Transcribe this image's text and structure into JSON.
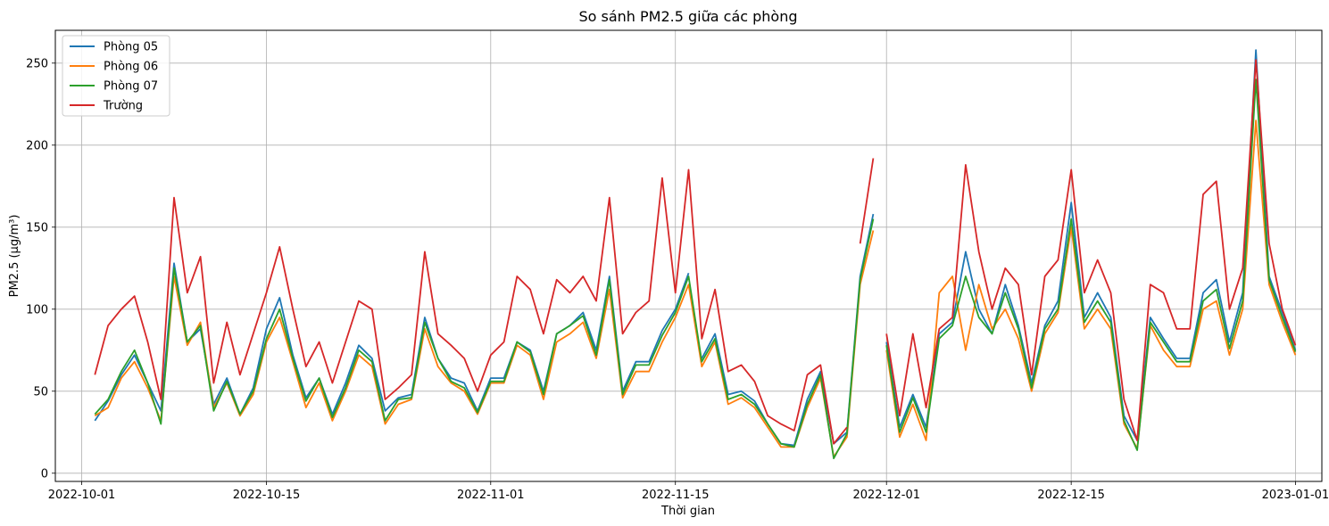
{
  "chart_data": {
    "type": "line",
    "title": "So sánh PM2.5 giữa các phòng",
    "xlabel": "Thời gian",
    "ylabel": "PM2.5 (µg/m³)",
    "xlim": [
      "2022-09-29",
      "2023-01-03"
    ],
    "ylim": [
      -5,
      270
    ],
    "x_ticks": [
      "2022-10-01",
      "2022-10-15",
      "2022-11-01",
      "2022-11-15",
      "2022-12-01",
      "2022-12-15",
      "2023-01-01"
    ],
    "y_ticks": [
      0,
      50,
      100,
      150,
      200,
      250
    ],
    "grid": true,
    "legend_position": "top-left",
    "series": [
      {
        "name": "Phòng 05",
        "color": "#1f77b4",
        "x": [
          "2022-10-02",
          "2022-10-03",
          "2022-10-04",
          "2022-10-05",
          "2022-10-06",
          "2022-10-07",
          "2022-10-08",
          "2022-10-09",
          "2022-10-10",
          "2022-10-11",
          "2022-10-12",
          "2022-10-13",
          "2022-10-14",
          "2022-10-15",
          "2022-10-16",
          "2022-10-17",
          "2022-10-18",
          "2022-10-19",
          "2022-10-20",
          "2022-10-21",
          "2022-10-22",
          "2022-10-23",
          "2022-10-24",
          "2022-10-25",
          "2022-10-26",
          "2022-10-27",
          "2022-10-28",
          "2022-10-29",
          "2022-10-30",
          "2022-10-31",
          "2022-11-01",
          "2022-11-02",
          "2022-11-03",
          "2022-11-04",
          "2022-11-05",
          "2022-11-06",
          "2022-11-07",
          "2022-11-08",
          "2022-11-09",
          "2022-11-10",
          "2022-11-11",
          "2022-11-12",
          "2022-11-13",
          "2022-11-14",
          "2022-11-15",
          "2022-11-16",
          "2022-11-17",
          "2022-11-18",
          "2022-11-19",
          "2022-11-20",
          "2022-11-21",
          "2022-11-22",
          "2022-11-23",
          "2022-11-24",
          "2022-11-25",
          "2022-11-26",
          "2022-11-27",
          "2022-11-28",
          "2022-11-29",
          "2022-11-30",
          "2022-12-01",
          "2022-12-02",
          "2022-12-03",
          "2022-12-04",
          "2022-12-05",
          "2022-12-06",
          "2022-12-07",
          "2022-12-08",
          "2022-12-09",
          "2022-12-10",
          "2022-12-11",
          "2022-12-12",
          "2022-12-13",
          "2022-12-14",
          "2022-12-15",
          "2022-12-16",
          "2022-12-17",
          "2022-12-18",
          "2022-12-19",
          "2022-12-20",
          "2022-12-21",
          "2022-12-22",
          "2022-12-23",
          "2022-12-24",
          "2022-12-25",
          "2022-12-26",
          "2022-12-27",
          "2022-12-28",
          "2022-12-29",
          "2022-12-30",
          "2022-12-31",
          "2023-01-01"
        ],
        "values": [
          32,
          44,
          60,
          72,
          55,
          38,
          128,
          80,
          88,
          42,
          58,
          36,
          52,
          88,
          107,
          72,
          46,
          58,
          36,
          55,
          78,
          70,
          38,
          46,
          48,
          95,
          70,
          58,
          55,
          38,
          58,
          58,
          80,
          75,
          50,
          85,
          90,
          98,
          75,
          120,
          50,
          68,
          68,
          87,
          100,
          122,
          70,
          85,
          48,
          50,
          44,
          30,
          18,
          17,
          45,
          62,
          18,
          25,
          120,
          158,
          80,
          28,
          48,
          28,
          85,
          92,
          135,
          100,
          85,
          115,
          90,
          55,
          90,
          105,
          165,
          95,
          110,
          95,
          35,
          20,
          95,
          82,
          70,
          70,
          110,
          118,
          80,
          110,
          258,
          120,
          98,
          75
        ],
        "gaps_after": [
          "2022-11-16",
          "2022-11-30"
        ]
      },
      {
        "name": "Phòng 06",
        "color": "#ff7f0e",
        "x": [
          "2022-10-02",
          "2022-10-03",
          "2022-10-04",
          "2022-10-05",
          "2022-10-06",
          "2022-10-07",
          "2022-10-08",
          "2022-10-09",
          "2022-10-10",
          "2022-10-11",
          "2022-10-12",
          "2022-10-13",
          "2022-10-14",
          "2022-10-15",
          "2022-10-16",
          "2022-10-17",
          "2022-10-18",
          "2022-10-19",
          "2022-10-20",
          "2022-10-21",
          "2022-10-22",
          "2022-10-23",
          "2022-10-24",
          "2022-10-25",
          "2022-10-26",
          "2022-10-27",
          "2022-10-28",
          "2022-10-29",
          "2022-10-30",
          "2022-10-31",
          "2022-11-01",
          "2022-11-02",
          "2022-11-03",
          "2022-11-04",
          "2022-11-05",
          "2022-11-06",
          "2022-11-07",
          "2022-11-08",
          "2022-11-09",
          "2022-11-10",
          "2022-11-11",
          "2022-11-12",
          "2022-11-13",
          "2022-11-14",
          "2022-11-15",
          "2022-11-16",
          "2022-11-17",
          "2022-11-18",
          "2022-11-19",
          "2022-11-20",
          "2022-11-21",
          "2022-11-22",
          "2022-11-23",
          "2022-11-24",
          "2022-11-25",
          "2022-11-26",
          "2022-11-27",
          "2022-11-28",
          "2022-11-29",
          "2022-11-30",
          "2022-12-01",
          "2022-12-02",
          "2022-12-03",
          "2022-12-04",
          "2022-12-05",
          "2022-12-06",
          "2022-12-07",
          "2022-12-08",
          "2022-12-09",
          "2022-12-10",
          "2022-12-11",
          "2022-12-12",
          "2022-12-13",
          "2022-12-14",
          "2022-12-15",
          "2022-12-16",
          "2022-12-17",
          "2022-12-18",
          "2022-12-19",
          "2022-12-20",
          "2022-12-21",
          "2022-12-22",
          "2022-12-23",
          "2022-12-24",
          "2022-12-25",
          "2022-12-26",
          "2022-12-27",
          "2022-12-28",
          "2022-12-29",
          "2022-12-30",
          "2022-12-31",
          "2023-01-01"
        ],
        "values": [
          35,
          40,
          58,
          68,
          52,
          32,
          120,
          78,
          92,
          40,
          55,
          35,
          48,
          80,
          95,
          68,
          40,
          55,
          32,
          50,
          72,
          65,
          30,
          42,
          45,
          88,
          65,
          55,
          50,
          36,
          55,
          55,
          78,
          72,
          45,
          80,
          85,
          92,
          70,
          112,
          46,
          62,
          62,
          80,
          95,
          115,
          65,
          80,
          42,
          46,
          40,
          28,
          16,
          16,
          40,
          58,
          10,
          22,
          115,
          148,
          75,
          22,
          42,
          20,
          110,
          120,
          75,
          115,
          88,
          100,
          82,
          50,
          85,
          98,
          150,
          88,
          100,
          88,
          30,
          15,
          90,
          75,
          65,
          65,
          100,
          105,
          72,
          100,
          215,
          115,
          92,
          72
        ],
        "gaps_after": [
          "2022-11-30"
        ]
      },
      {
        "name": "Phòng 07",
        "color": "#2ca02c",
        "x": [
          "2022-10-02",
          "2022-10-03",
          "2022-10-04",
          "2022-10-05",
          "2022-10-06",
          "2022-10-07",
          "2022-10-08",
          "2022-10-09",
          "2022-10-10",
          "2022-10-11",
          "2022-10-12",
          "2022-10-13",
          "2022-10-14",
          "2022-10-15",
          "2022-10-16",
          "2022-10-17",
          "2022-10-18",
          "2022-10-19",
          "2022-10-20",
          "2022-10-21",
          "2022-10-22",
          "2022-10-23",
          "2022-10-24",
          "2022-10-25",
          "2022-10-26",
          "2022-10-27",
          "2022-10-28",
          "2022-10-29",
          "2022-10-30",
          "2022-10-31",
          "2022-11-01",
          "2022-11-02",
          "2022-11-03",
          "2022-11-04",
          "2022-11-05",
          "2022-11-06",
          "2022-11-07",
          "2022-11-08",
          "2022-11-09",
          "2022-11-10",
          "2022-11-11",
          "2022-11-12",
          "2022-11-13",
          "2022-11-14",
          "2022-11-15",
          "2022-11-16",
          "2022-11-17",
          "2022-11-18",
          "2022-11-19",
          "2022-11-20",
          "2022-11-21",
          "2022-11-22",
          "2022-11-23",
          "2022-11-24",
          "2022-11-25",
          "2022-11-26",
          "2022-11-27",
          "2022-11-28",
          "2022-11-29",
          "2022-11-30",
          "2022-12-01",
          "2022-12-02",
          "2022-12-03",
          "2022-12-04",
          "2022-12-05",
          "2022-12-06",
          "2022-12-07",
          "2022-12-08",
          "2022-12-09",
          "2022-12-10",
          "2022-12-11",
          "2022-12-12",
          "2022-12-13",
          "2022-12-14",
          "2022-12-15",
          "2022-12-16",
          "2022-12-17",
          "2022-12-18",
          "2022-12-19",
          "2022-12-20",
          "2022-12-21",
          "2022-12-22",
          "2022-12-23",
          "2022-12-24",
          "2022-12-25",
          "2022-12-26",
          "2022-12-27",
          "2022-12-28",
          "2022-12-29",
          "2022-12-30",
          "2022-12-31",
          "2023-01-01"
        ],
        "values": [
          36,
          45,
          62,
          75,
          55,
          30,
          125,
          80,
          90,
          38,
          56,
          36,
          50,
          82,
          100,
          70,
          44,
          58,
          34,
          52,
          75,
          68,
          32,
          45,
          46,
          92,
          70,
          56,
          52,
          37,
          56,
          56,
          80,
          74,
          48,
          85,
          90,
          96,
          72,
          118,
          48,
          66,
          66,
          84,
          98,
          120,
          68,
          82,
          45,
          48,
          42,
          30,
          18,
          16,
          42,
          60,
          9,
          24,
          118,
          155,
          78,
          25,
          46,
          25,
          82,
          90,
          120,
          95,
          85,
          110,
          88,
          52,
          88,
          100,
          155,
          92,
          105,
          92,
          32,
          14,
          92,
          80,
          68,
          68,
          105,
          112,
          76,
          105,
          240,
          118,
          95,
          74
        ],
        "gaps_after": [
          "2022-11-30"
        ]
      },
      {
        "name": "Trường",
        "color": "#d62728",
        "x": [
          "2022-10-02",
          "2022-10-03",
          "2022-10-04",
          "2022-10-05",
          "2022-10-06",
          "2022-10-07",
          "2022-10-08",
          "2022-10-09",
          "2022-10-10",
          "2022-10-11",
          "2022-10-12",
          "2022-10-13",
          "2022-10-14",
          "2022-10-15",
          "2022-10-16",
          "2022-10-17",
          "2022-10-18",
          "2022-10-19",
          "2022-10-20",
          "2022-10-21",
          "2022-10-22",
          "2022-10-23",
          "2022-10-24",
          "2022-10-25",
          "2022-10-26",
          "2022-10-27",
          "2022-10-28",
          "2022-10-29",
          "2022-10-30",
          "2022-10-31",
          "2022-11-01",
          "2022-11-02",
          "2022-11-03",
          "2022-11-04",
          "2022-11-05",
          "2022-11-06",
          "2022-11-07",
          "2022-11-08",
          "2022-11-09",
          "2022-11-10",
          "2022-11-11",
          "2022-11-12",
          "2022-11-13",
          "2022-11-14",
          "2022-11-15",
          "2022-11-16",
          "2022-11-17",
          "2022-11-18",
          "2022-11-19",
          "2022-11-20",
          "2022-11-21",
          "2022-11-22",
          "2022-11-23",
          "2022-11-24",
          "2022-11-25",
          "2022-11-26",
          "2022-11-27",
          "2022-11-28",
          "2022-11-29",
          "2022-11-30",
          "2022-12-01",
          "2022-12-02",
          "2022-12-03",
          "2022-12-04",
          "2022-12-05",
          "2022-12-06",
          "2022-12-07",
          "2022-12-08",
          "2022-12-09",
          "2022-12-10",
          "2022-12-11",
          "2022-12-12",
          "2022-12-13",
          "2022-12-14",
          "2022-12-15",
          "2022-12-16",
          "2022-12-17",
          "2022-12-18",
          "2022-12-19",
          "2022-12-20",
          "2022-12-21",
          "2022-12-22",
          "2022-12-23",
          "2022-12-24",
          "2022-12-25",
          "2022-12-26",
          "2022-12-27",
          "2022-12-28",
          "2022-12-29",
          "2022-12-30",
          "2022-12-31",
          "2023-01-01"
        ],
        "values": [
          60,
          90,
          100,
          108,
          80,
          45,
          168,
          110,
          132,
          55,
          92,
          60,
          85,
          110,
          138,
          100,
          65,
          80,
          55,
          80,
          105,
          100,
          45,
          52,
          60,
          135,
          85,
          78,
          70,
          50,
          72,
          80,
          120,
          112,
          85,
          118,
          110,
          120,
          105,
          168,
          85,
          98,
          105,
          180,
          110,
          185,
          82,
          112,
          62,
          66,
          56,
          35,
          30,
          26,
          60,
          66,
          18,
          28,
          140,
          192,
          85,
          35,
          85,
          40,
          88,
          95,
          188,
          135,
          100,
          125,
          115,
          60,
          120,
          130,
          185,
          110,
          130,
          110,
          45,
          20,
          115,
          110,
          88,
          88,
          170,
          178,
          100,
          125,
          252,
          140,
          100,
          78
        ],
        "gaps_after": [
          "2022-11-28",
          "2022-11-30"
        ]
      }
    ]
  }
}
